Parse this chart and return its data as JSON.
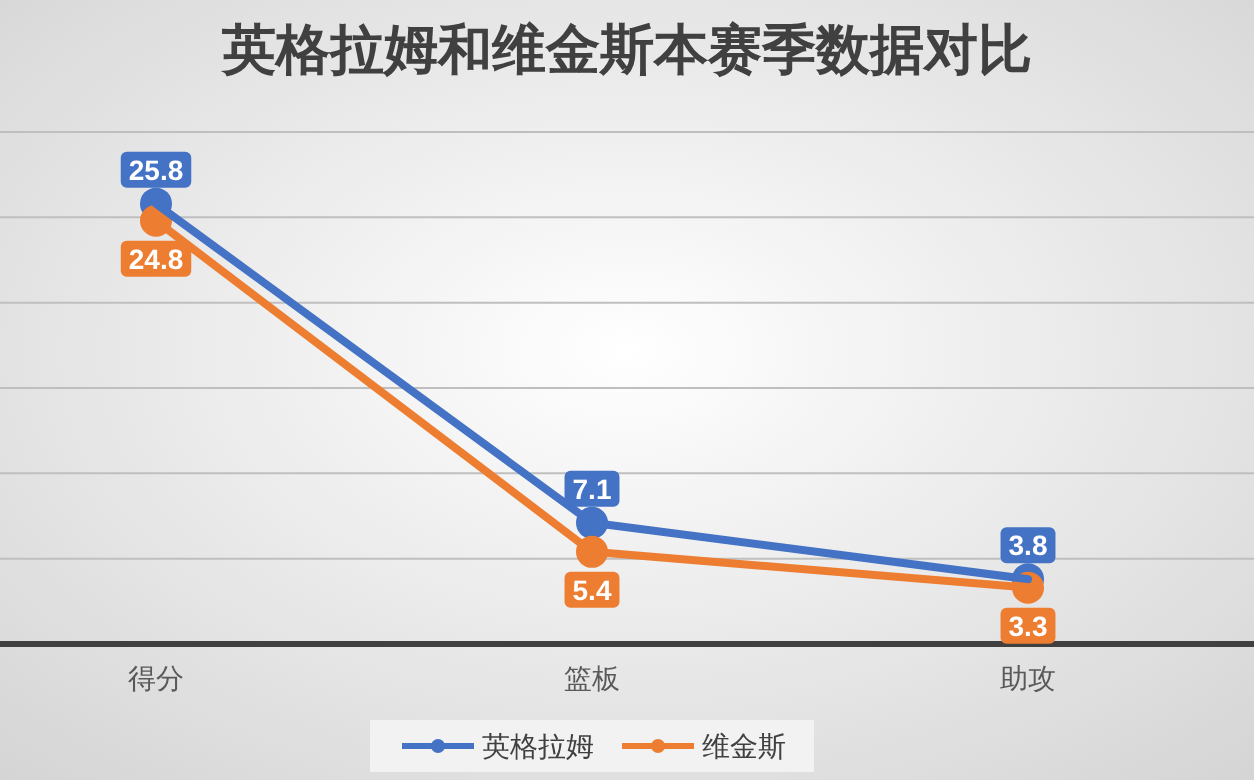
{
  "chart_data": {
    "type": "line",
    "title": "英格拉姆和维金斯本赛季数据对比",
    "categories": [
      "得分",
      "篮板",
      "助攻"
    ],
    "series": [
      {
        "name": "英格拉姆",
        "color": "#4472c4",
        "values": [
          25.8,
          7.1,
          3.8
        ]
      },
      {
        "name": "维金斯",
        "color": "#ed7d31",
        "values": [
          24.8,
          5.4,
          3.3
        ]
      }
    ],
    "ylim": [
      0,
      30
    ],
    "yticks": [
      {
        "value": 0,
        "label": null
      },
      {
        "value": 5,
        "label": null
      },
      {
        "value": 10,
        "label": null
      },
      {
        "value": 15,
        "label": null
      },
      {
        "value": 20,
        "label": null
      },
      {
        "value": 25,
        "label": null
      },
      {
        "value": 30,
        "label": null
      }
    ],
    "tick_labels": "x",
    "grid": "y",
    "legend": "bottom",
    "marker": "circle",
    "line_style": "solid",
    "data_labels": true
  }
}
